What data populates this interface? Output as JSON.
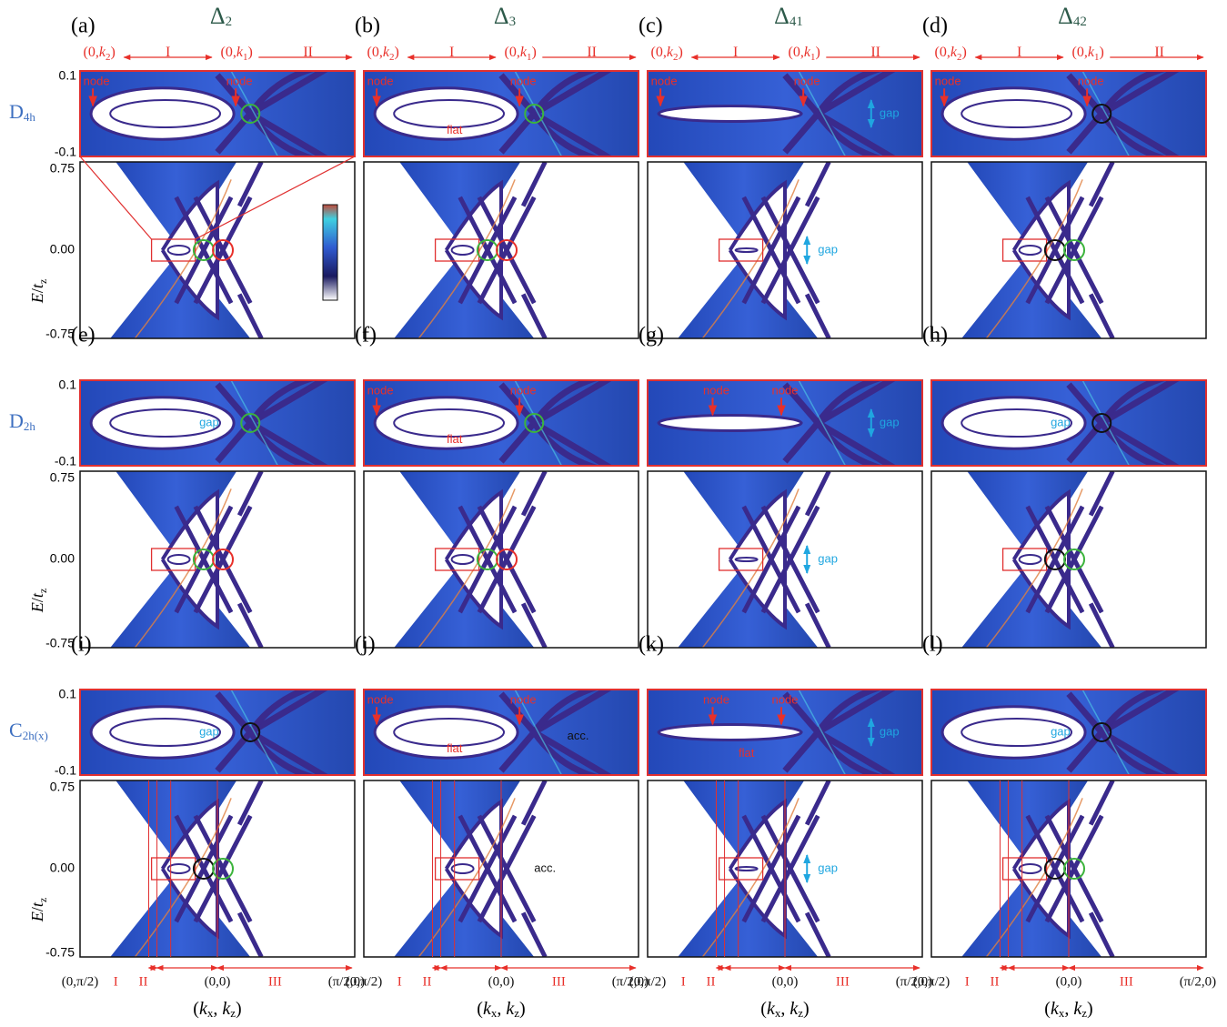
{
  "columns": [
    [
      {
        "t": "Δ"
      },
      {
        "sub": "2"
      }
    ],
    [
      {
        "t": "Δ"
      },
      {
        "sub": "3"
      }
    ],
    [
      {
        "t": "Δ"
      },
      {
        "sub": "41"
      }
    ],
    [
      {
        "t": "Δ"
      },
      {
        "sub": "42"
      }
    ]
  ],
  "rows": [
    [
      {
        "t": "D"
      },
      {
        "sub": "4h"
      }
    ],
    [
      {
        "t": "D"
      },
      {
        "sub": "2h"
      }
    ],
    [
      {
        "t": "C"
      },
      {
        "sub": "2h(x)"
      }
    ]
  ],
  "top_axis": [
    [
      {
        "t": "(0,"
      },
      {
        "it": "k"
      },
      {
        "sub": "2"
      },
      {
        "t": ")"
      }
    ],
    [
      {
        "t": "I"
      }
    ],
    [
      {
        "t": "(0,"
      },
      {
        "it": "k"
      },
      {
        "sub": "1"
      },
      {
        "t": ")"
      }
    ],
    [
      {
        "t": "II"
      }
    ]
  ],
  "inset_yticks": [
    "0.1",
    "-0.1"
  ],
  "main_yticks": [
    "0.75",
    "0.00",
    "-0.75"
  ],
  "y_label": [
    {
      "it": "E"
    },
    {
      "t": "/"
    },
    {
      "it": "t"
    },
    {
      "sub": "z"
    }
  ],
  "bottom_axis": [
    "(0,π/2)",
    "I",
    "II",
    "(0,0)",
    "III",
    "(π/2,0)"
  ],
  "x_label": [
    {
      "t": "("
    },
    {
      "it": "k"
    },
    {
      "sub": "x"
    },
    {
      "t": ", "
    },
    {
      "it": "k"
    },
    {
      "sub": "z"
    },
    {
      "t": ")"
    }
  ],
  "panels": [
    {
      "label": "(a)",
      "inset": [
        {
          "text": "node",
          "color": "#e8302a"
        },
        {
          "text": "node",
          "color": "#e8302a"
        }
      ],
      "main": []
    },
    {
      "label": "(b)",
      "inset": [
        {
          "text": "node",
          "color": "#e8302a"
        },
        {
          "text": "node",
          "color": "#e8302a"
        },
        {
          "text": "flat",
          "color": "#e8302a"
        }
      ],
      "main": []
    },
    {
      "label": "(c)",
      "inset": [
        {
          "text": "node",
          "color": "#e8302a"
        },
        {
          "text": "node",
          "color": "#e8302a"
        },
        {
          "text": "gap",
          "color": "#1fa6e0"
        }
      ],
      "main": [
        {
          "text": "gap",
          "color": "#1fa6e0"
        }
      ]
    },
    {
      "label": "(d)",
      "inset": [
        {
          "text": "node",
          "color": "#e8302a"
        },
        {
          "text": "node",
          "color": "#e8302a"
        }
      ],
      "main": []
    },
    {
      "label": "(e)",
      "inset": [
        {
          "text": "gap",
          "color": "#1fa6e0"
        }
      ],
      "main": []
    },
    {
      "label": "(f)",
      "inset": [
        {
          "text": "node",
          "color": "#e8302a"
        },
        {
          "text": "node",
          "color": "#e8302a"
        },
        {
          "text": "flat",
          "color": "#e8302a"
        }
      ],
      "main": []
    },
    {
      "label": "(g)",
      "inset": [
        {
          "text": "node",
          "color": "#e8302a"
        },
        {
          "text": "node",
          "color": "#e8302a"
        },
        {
          "text": "gap",
          "color": "#1fa6e0"
        }
      ],
      "main": [
        {
          "text": "gap",
          "color": "#1fa6e0"
        }
      ]
    },
    {
      "label": "(h)",
      "inset": [
        {
          "text": "gap",
          "color": "#1fa6e0"
        }
      ],
      "main": []
    },
    {
      "label": "(i)",
      "inset": [
        {
          "text": "gap",
          "color": "#1fa6e0"
        }
      ],
      "main": []
    },
    {
      "label": "(j)",
      "inset": [
        {
          "text": "node",
          "color": "#e8302a"
        },
        {
          "text": "node",
          "color": "#e8302a"
        },
        {
          "text": "flat",
          "color": "#e8302a"
        },
        {
          "text": "acc.",
          "color": "#111111"
        }
      ],
      "main": [
        {
          "text": "acc.",
          "color": "#111111"
        }
      ]
    },
    {
      "label": "(k)",
      "inset": [
        {
          "text": "node",
          "color": "#e8302a"
        },
        {
          "text": "node",
          "color": "#e8302a"
        },
        {
          "text": "flat",
          "color": "#e8302a"
        },
        {
          "text": "gap",
          "color": "#1fa6e0"
        }
      ],
      "main": [
        {
          "text": "gap",
          "color": "#1fa6e0"
        }
      ]
    },
    {
      "label": "(l)",
      "inset": [
        {
          "text": "gap",
          "color": "#1fa6e0"
        }
      ],
      "main": []
    }
  ]
}
